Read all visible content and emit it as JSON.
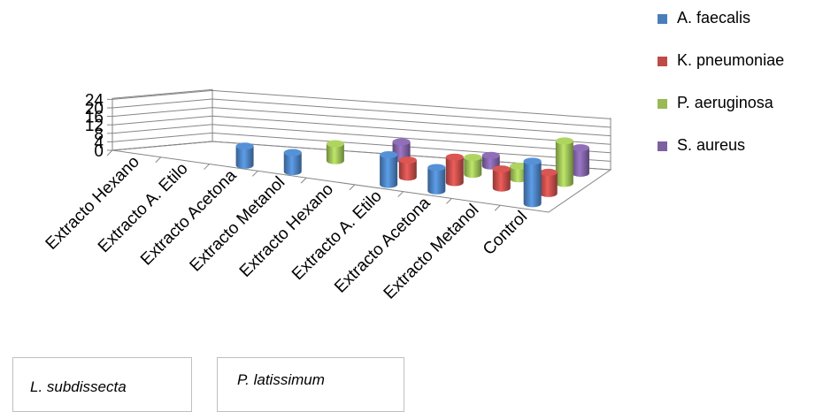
{
  "chart_data": {
    "type": "bar",
    "subtype": "3d-cylinder",
    "categories": [
      "Extracto Hexano",
      "Extracto A. Etilo",
      "Extracto Acetona",
      "Extracto Metanol",
      "Extracto Hexano",
      "Extracto A. Etilo",
      "Extracto Acetona",
      "Extracto Metanol",
      "Control"
    ],
    "category_groups": [
      {
        "label": "L. subdissecta",
        "categories": [
          0,
          1,
          2,
          3
        ]
      },
      {
        "label": "P. latissimum",
        "categories": [
          4,
          5,
          6,
          7
        ]
      }
    ],
    "series": [
      {
        "name": "A. faecalis",
        "color": "#4a7ebb",
        "values": [
          0,
          0,
          9,
          9,
          0,
          14,
          11,
          0,
          20
        ]
      },
      {
        "name": "K. pneumoniae",
        "color": "#be4b48",
        "values": [
          0,
          0,
          0,
          0,
          0,
          8,
          12,
          9,
          10
        ]
      },
      {
        "name": "P. aeruginosa",
        "color": "#98b954",
        "values": [
          0,
          0,
          0,
          8,
          0,
          0,
          8,
          6,
          20
        ]
      },
      {
        "name": "S. aureus",
        "color": "#7d60a0",
        "values": [
          0,
          0,
          0,
          0,
          8,
          0,
          5,
          0,
          12
        ]
      }
    ],
    "y_ticks": [
      "0",
      "4",
      "8",
      "12",
      "16",
      "20",
      "24"
    ],
    "ylim": [
      0,
      24
    ],
    "grid": true,
    "legend_position": "right"
  }
}
